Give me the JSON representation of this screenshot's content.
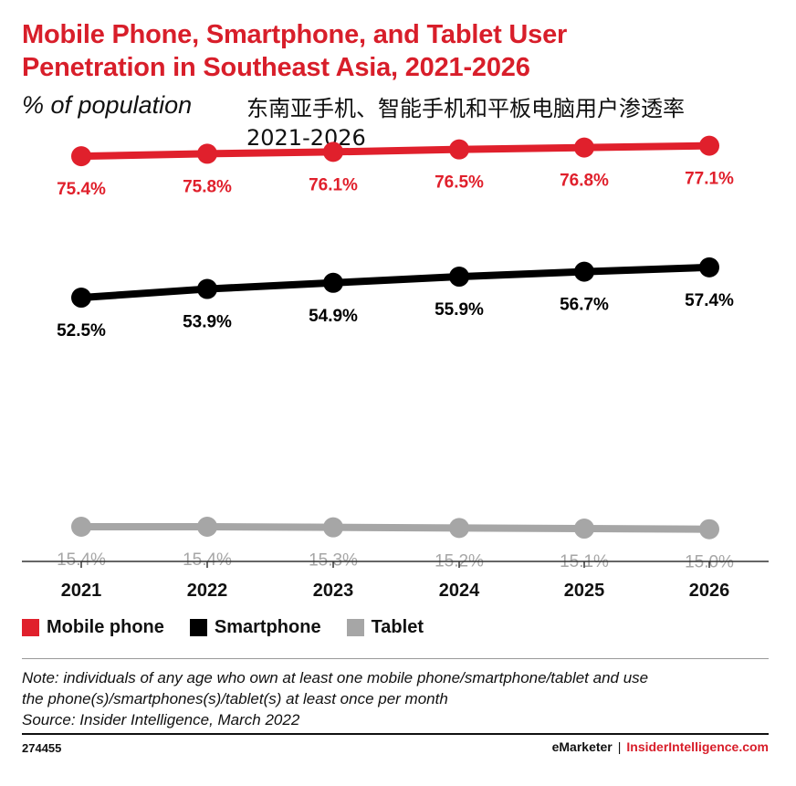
{
  "title_line1": "Mobile Phone, Smartphone, and Tablet User",
  "title_line2": "Penetration in Southeast Asia, 2021-2026",
  "subtitle": "% of population",
  "cn_line1": "东南亚手机、智能手机和平板电脑用户渗透率",
  "cn_line2": "2021-2026",
  "colors": {
    "mobile": "#e0202c",
    "smartphone": "#000000",
    "tablet": "#a6a6a6",
    "accent": "#d81e2a"
  },
  "chart_data": {
    "type": "line",
    "title": "Mobile Phone, Smartphone, and Tablet User Penetration in Southeast Asia, 2021-2026",
    "ylabel": "% of population",
    "x": [
      "2021",
      "2022",
      "2023",
      "2024",
      "2025",
      "2026"
    ],
    "ylim": [
      12,
      80
    ],
    "grid": false,
    "legend": "bottom-left",
    "series": [
      {
        "name": "Mobile phone",
        "color": "#e0202c",
        "values": [
          75.4,
          75.8,
          76.1,
          76.5,
          76.8,
          77.1
        ],
        "labels": [
          "75.4%",
          "75.8%",
          "76.1%",
          "76.5%",
          "76.8%",
          "77.1%"
        ]
      },
      {
        "name": "Smartphone",
        "color": "#000000",
        "values": [
          52.5,
          53.9,
          54.9,
          55.9,
          56.7,
          57.4
        ],
        "labels": [
          "52.5%",
          "53.9%",
          "54.9%",
          "55.9%",
          "56.7%",
          "57.4%"
        ]
      },
      {
        "name": "Tablet",
        "color": "#a6a6a6",
        "values": [
          15.4,
          15.4,
          15.3,
          15.2,
          15.1,
          15.0
        ],
        "labels": [
          "15.4%",
          "15.4%",
          "15.3%",
          "15.2%",
          "15.1%",
          "15.0%"
        ]
      }
    ]
  },
  "legend": [
    "Mobile phone",
    "Smartphone",
    "Tablet"
  ],
  "note_line1": "Note: individuals of any age who own at least one mobile phone/smartphone/tablet and use",
  "note_line2": "the phone(s)/smartphones(s)/tablet(s) at least once per month",
  "source": "Source: Insider Intelligence, March 2022",
  "chart_id": "274455",
  "brand_emarketer": "eMarketer",
  "brand_separator": "|",
  "brand_insider": "InsiderIntelligence.com"
}
